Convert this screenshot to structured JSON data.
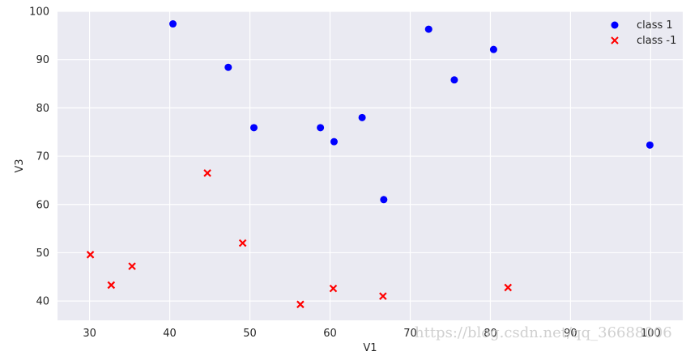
{
  "chart_data": {
    "type": "scatter",
    "title": "",
    "xlabel": "V1",
    "ylabel": "V3",
    "xlim": [
      26,
      104
    ],
    "ylim": [
      36,
      100
    ],
    "xticks": [
      30,
      40,
      50,
      60,
      70,
      80,
      90,
      100
    ],
    "yticks": [
      40,
      50,
      60,
      70,
      80,
      90,
      100
    ],
    "grid": true,
    "legend_position": "top-right",
    "series": [
      {
        "name": "class 1",
        "marker": "circle",
        "color": "#0000ff",
        "points": [
          {
            "x": 40.4,
            "y": 97.4
          },
          {
            "x": 47.3,
            "y": 88.4
          },
          {
            "x": 50.5,
            "y": 75.9
          },
          {
            "x": 58.8,
            "y": 75.9
          },
          {
            "x": 60.5,
            "y": 73.0
          },
          {
            "x": 64.0,
            "y": 78.0
          },
          {
            "x": 66.7,
            "y": 61.0
          },
          {
            "x": 72.3,
            "y": 96.3
          },
          {
            "x": 75.5,
            "y": 85.8
          },
          {
            "x": 80.4,
            "y": 92.1
          },
          {
            "x": 99.9,
            "y": 72.3
          }
        ]
      },
      {
        "name": "class -1",
        "marker": "x",
        "color": "#ff0000",
        "points": [
          {
            "x": 30.1,
            "y": 49.6
          },
          {
            "x": 32.7,
            "y": 43.3
          },
          {
            "x": 35.3,
            "y": 47.2
          },
          {
            "x": 44.7,
            "y": 66.5
          },
          {
            "x": 49.1,
            "y": 52.0
          },
          {
            "x": 56.3,
            "y": 39.3
          },
          {
            "x": 60.4,
            "y": 42.6
          },
          {
            "x": 66.6,
            "y": 41.0
          },
          {
            "x": 82.2,
            "y": 42.8
          }
        ]
      }
    ]
  },
  "watermark": "https://blog.csdn.net/qq_36688006"
}
